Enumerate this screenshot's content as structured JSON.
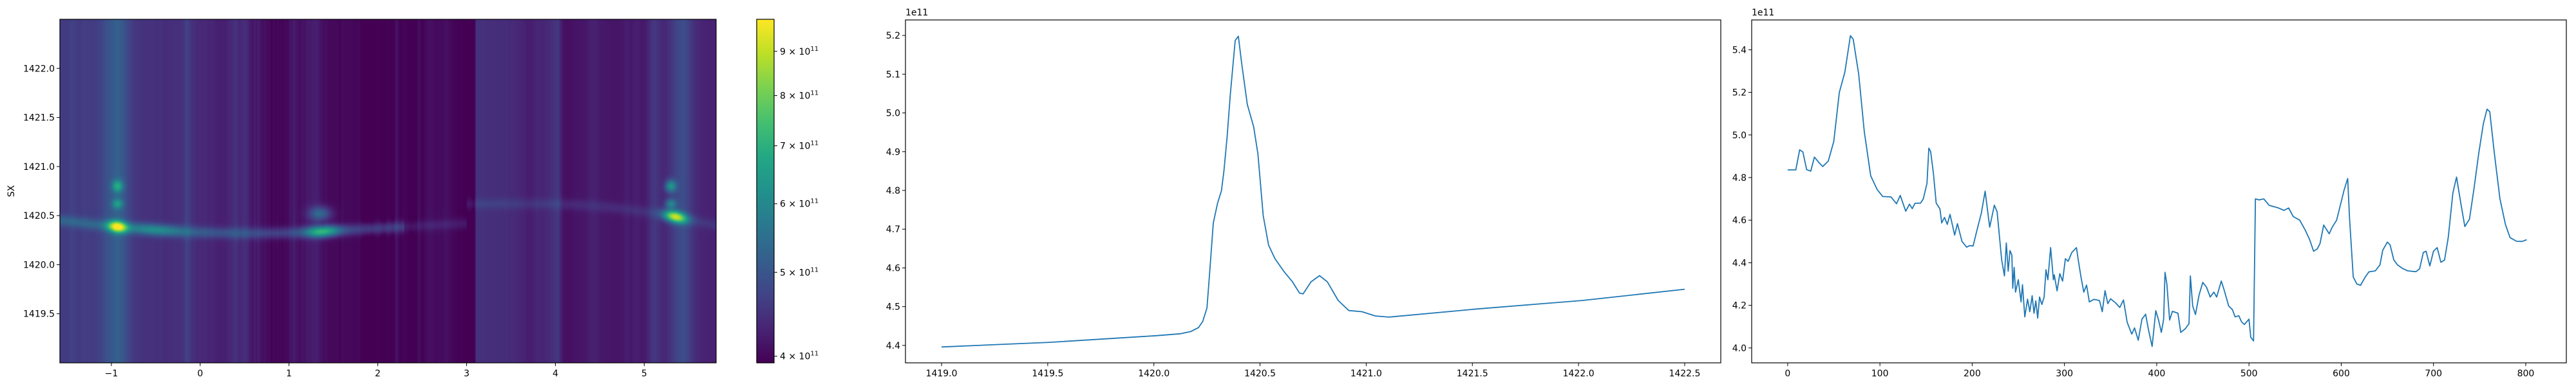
{
  "chart_data": [
    {
      "type": "heatmap",
      "colormap": "viridis",
      "ylabel": "SX",
      "xlabel": "",
      "xlim": [
        -1.58,
        5.81
      ],
      "ylim": [
        1419.0,
        1422.5
      ],
      "xticks": [
        -1,
        0,
        1,
        2,
        3,
        4,
        5
      ],
      "xtick_labels": [
        "−1",
        "0",
        "1",
        "2",
        "3",
        "4",
        "5"
      ],
      "yticks": [
        1419.5,
        1420.0,
        1420.5,
        1421.0,
        1421.5,
        1422.0
      ],
      "ytick_labels": [
        "1419.5",
        "1420.0",
        "1420.5",
        "1421.0",
        "1421.5",
        "1422.0"
      ],
      "colorbar": {
        "scale": "log",
        "range": [
          393000000000.0,
          980000000000.0
        ],
        "ticks": [
          400000000000.0,
          500000000000.0,
          600000000000.0,
          700000000000.0,
          800000000000.0,
          900000000000.0
        ],
        "tick_labels": [
          {
            "mantissa": "4 × 10",
            "exponent": "11"
          },
          {
            "mantissa": "5 × 10",
            "exponent": "11"
          },
          {
            "mantissa": "6 × 10",
            "exponent": "11"
          },
          {
            "mantissa": "7 × 10",
            "exponent": "11"
          },
          {
            "mantissa": "8 × 10",
            "exponent": "11"
          },
          {
            "mantissa": "9 × 10",
            "exponent": "11"
          }
        ]
      },
      "bright_features": [
        {
          "x": -0.93,
          "y": 1420.43,
          "value": 960000000000.0
        },
        {
          "x": 1.4,
          "y": 1420.35,
          "value": 700000000000.0
        },
        {
          "x": 5.35,
          "y": 1420.43,
          "value": 920000000000.0
        }
      ]
    },
    {
      "type": "line",
      "color": "#1f77b4",
      "offset_text": "1e11",
      "xlim": [
        1418.83,
        1422.67
      ],
      "ylim": [
        4.355,
        5.24
      ],
      "xticks": [
        1419.0,
        1419.5,
        1420.0,
        1420.5,
        1421.0,
        1421.5,
        1422.0,
        1422.5
      ],
      "xtick_labels": [
        "1419.0",
        "1419.5",
        "1420.0",
        "1420.5",
        "1421.0",
        "1421.5",
        "1422.0",
        "1422.5"
      ],
      "yticks": [
        4.4,
        4.5,
        4.6,
        4.7,
        4.8,
        4.9,
        5.0,
        5.1,
        5.2
      ],
      "ytick_labels": [
        "4.4",
        "4.5",
        "4.6",
        "4.7",
        "4.8",
        "4.9",
        "5.0",
        "5.1",
        "5.2"
      ],
      "x": [
        1419.0,
        1419.51,
        1420.01,
        1420.125,
        1420.175,
        1420.21,
        1420.23,
        1420.25,
        1420.263,
        1420.28,
        1420.3,
        1420.318,
        1420.33,
        1420.345,
        1420.36,
        1420.383,
        1420.398,
        1420.413,
        1420.44,
        1420.47,
        1420.49,
        1420.515,
        1420.54,
        1420.57,
        1420.615,
        1420.653,
        1420.686,
        1420.703,
        1420.74,
        1420.78,
        1420.817,
        1420.868,
        1420.918,
        1420.98,
        1421.043,
        1421.106,
        1421.52,
        1422.02,
        1422.5
      ],
      "y": [
        4.396,
        4.408,
        4.425,
        4.43,
        4.436,
        4.446,
        4.462,
        4.497,
        4.589,
        4.716,
        4.767,
        4.799,
        4.85,
        4.939,
        5.047,
        5.187,
        5.198,
        5.13,
        5.022,
        4.964,
        4.894,
        4.735,
        4.659,
        4.624,
        4.589,
        4.564,
        4.535,
        4.533,
        4.564,
        4.58,
        4.564,
        4.516,
        4.49,
        4.487,
        4.476,
        4.473,
        4.494,
        4.516,
        4.545
      ]
    },
    {
      "type": "line",
      "color": "#1f77b4",
      "offset_text": "1e11",
      "xlim": [
        -39,
        844
      ],
      "ylim": [
        3.93,
        5.54
      ],
      "xticks": [
        0,
        100,
        200,
        300,
        400,
        500,
        600,
        700,
        800
      ],
      "xtick_labels": [
        "0",
        "100",
        "200",
        "300",
        "400",
        "500",
        "600",
        "700",
        "800"
      ],
      "yticks": [
        4.0,
        4.2,
        4.4,
        4.6,
        4.8,
        5.0,
        5.2,
        5.4
      ],
      "ytick_labels": [
        "4.0",
        "4.2",
        "4.4",
        "4.6",
        "4.8",
        "5.0",
        "5.2",
        "5.4"
      ],
      "x": [
        0,
        8.8,
        13,
        16.5,
        20.6,
        25,
        29,
        33.5,
        38,
        44,
        50,
        56,
        62,
        68,
        71,
        77,
        83,
        90,
        97,
        103,
        112,
        118,
        122,
        128,
        132,
        135,
        138,
        144,
        147,
        151,
        153,
        155,
        158,
        161,
        165,
        167,
        170,
        173,
        176,
        181,
        184,
        189,
        194,
        197,
        201,
        205,
        210,
        214,
        219,
        224,
        227,
        232,
        235,
        237,
        239,
        241,
        243,
        244,
        245.5,
        247,
        250,
        253,
        254.5,
        257,
        260,
        262.5,
        265,
        267,
        269,
        271,
        273,
        275.5,
        278,
        280,
        282,
        285,
        288,
        289,
        292,
        295,
        298,
        301,
        304,
        308,
        313,
        315,
        318,
        321,
        324,
        327,
        332,
        338,
        341,
        344,
        347,
        350,
        355,
        360,
        364,
        368,
        373,
        376,
        380,
        384,
        388,
        391,
        395,
        399,
        402,
        405,
        407.5,
        409,
        411,
        414,
        417,
        423,
        426,
        431,
        435,
        436.5,
        439,
        442,
        446,
        450,
        454,
        458,
        462,
        465,
        470,
        473,
        478,
        482,
        485,
        489,
        492,
        495,
        500,
        502,
        505,
        507,
        511,
        516,
        522,
        527,
        532,
        538,
        543,
        548,
        555,
        561,
        566,
        570,
        574,
        577,
        581,
        587,
        590,
        595,
        599,
        603,
        605,
        607,
        609,
        613,
        617,
        621,
        626,
        630,
        637,
        642,
        645,
        650,
        653,
        657,
        661,
        667,
        672,
        681,
        685,
        689,
        692,
        696,
        700,
        704,
        708,
        712,
        716,
        721,
        725,
        730,
        734,
        739,
        744,
        749,
        754,
        758,
        761,
        766,
        772,
        778,
        783,
        790,
        796,
        801
      ],
      "y": [
        4.836,
        4.836,
        4.93,
        4.92,
        4.837,
        4.83,
        4.896,
        4.872,
        4.852,
        4.877,
        4.97,
        5.2,
        5.295,
        5.466,
        5.45,
        5.285,
        5.017,
        4.808,
        4.744,
        4.711,
        4.709,
        4.677,
        4.716,
        4.642,
        4.675,
        4.654,
        4.679,
        4.68,
        4.7,
        4.773,
        4.938,
        4.922,
        4.82,
        4.68,
        4.653,
        4.587,
        4.613,
        4.58,
        4.627,
        4.53,
        4.583,
        4.5,
        4.473,
        4.48,
        4.479,
        4.55,
        4.634,
        4.736,
        4.567,
        4.67,
        4.64,
        4.413,
        4.338,
        4.493,
        4.36,
        4.457,
        4.436,
        4.28,
        4.378,
        4.262,
        4.32,
        4.216,
        4.297,
        4.146,
        4.229,
        4.17,
        4.245,
        4.163,
        4.221,
        4.14,
        4.239,
        4.204,
        4.239,
        4.367,
        4.32,
        4.471,
        4.32,
        4.343,
        4.268,
        4.349,
        4.314,
        4.419,
        4.407,
        4.448,
        4.471,
        4.413,
        4.332,
        4.262,
        4.295,
        4.216,
        4.228,
        4.222,
        4.17,
        4.269,
        4.208,
        4.231,
        4.213,
        4.19,
        4.225,
        4.12,
        4.065,
        4.094,
        4.036,
        4.135,
        4.158,
        4.088,
        4.007,
        4.175,
        4.131,
        4.073,
        4.135,
        4.355,
        4.3,
        4.131,
        4.172,
        4.163,
        4.073,
        4.09,
        4.114,
        4.338,
        4.197,
        4.157,
        4.25,
        4.308,
        4.285,
        4.239,
        4.262,
        4.239,
        4.314,
        4.273,
        4.197,
        4.18,
        4.146,
        4.151,
        4.122,
        4.11,
        4.135,
        4.05,
        4.033,
        4.7,
        4.695,
        4.7,
        4.669,
        4.663,
        4.657,
        4.646,
        4.657,
        4.617,
        4.6,
        4.553,
        4.506,
        4.454,
        4.465,
        4.49,
        4.577,
        4.536,
        4.565,
        4.6,
        4.669,
        4.739,
        4.768,
        4.795,
        4.612,
        4.333,
        4.3,
        4.294,
        4.333,
        4.357,
        4.362,
        4.39,
        4.459,
        4.497,
        4.483,
        4.413,
        4.39,
        4.372,
        4.362,
        4.358,
        4.372,
        4.448,
        4.454,
        4.385,
        4.454,
        4.471,
        4.402,
        4.413,
        4.518,
        4.727,
        4.802,
        4.669,
        4.57,
        4.605,
        4.75,
        4.912,
        5.052,
        5.121,
        5.109,
        4.912,
        4.7,
        4.58,
        4.518,
        4.501,
        4.5,
        4.508
      ]
    }
  ]
}
